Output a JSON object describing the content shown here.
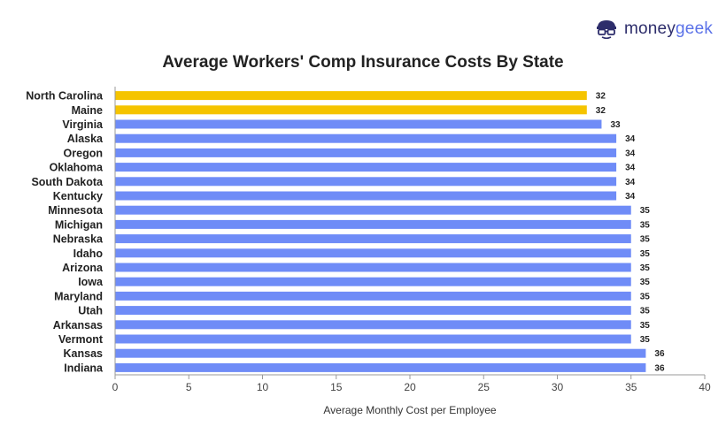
{
  "brand": {
    "name_part1": "money",
    "name_part2": "geek",
    "logo_icon": "geek-glasses-icon"
  },
  "colors": {
    "highlight": "#f5c400",
    "default": "#6f8cf7",
    "axis": "#999999",
    "text": "#222222"
  },
  "chart_data": {
    "type": "bar",
    "orientation": "horizontal",
    "title": "Average Workers' Comp Insurance Costs By State",
    "xlabel": "Average Monthly Cost per Employee",
    "ylabel": "",
    "xlim": [
      0,
      40
    ],
    "xticks": [
      0,
      5,
      10,
      15,
      20,
      25,
      30,
      35,
      40
    ],
    "grid": false,
    "categories": [
      "North Carolina",
      "Maine",
      "Virginia",
      "Alaska",
      "Oregon",
      "Oklahoma",
      "South Dakota",
      "Kentucky",
      "Minnesota",
      "Michigan",
      "Nebraska",
      "Idaho",
      "Arizona",
      "Iowa",
      "Maryland",
      "Utah",
      "Arkansas",
      "Vermont",
      "Kansas",
      "Indiana"
    ],
    "values": [
      32,
      32,
      33,
      34,
      34,
      34,
      34,
      34,
      35,
      35,
      35,
      35,
      35,
      35,
      35,
      35,
      35,
      35,
      36,
      36
    ],
    "highlighted": [
      "North Carolina",
      "Maine"
    ]
  }
}
